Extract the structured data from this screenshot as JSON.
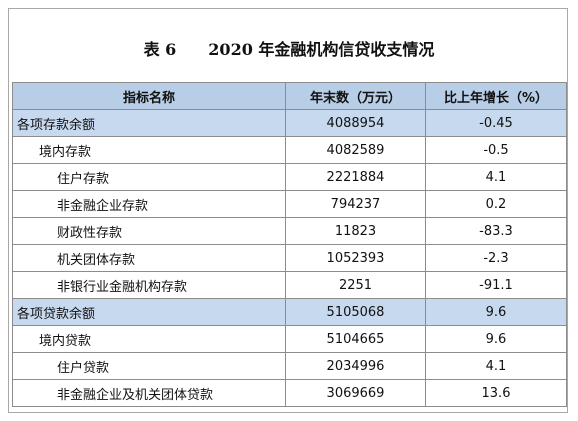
{
  "header": {
    "title": "表 6　　2020 年金融机构信贷收支情况"
  },
  "table": {
    "columns": [
      "指标名称",
      "年末数（万元）",
      "比上年增长（%）"
    ],
    "rows": [
      [
        "各项存款余额",
        "4088954",
        "-0.45"
      ],
      [
        "境内存款",
        "4082589",
        "-0.5"
      ],
      [
        "住户存款",
        "2221884",
        "4.1"
      ],
      [
        "非金融企业存款",
        "794237",
        "0.2"
      ],
      [
        "财政性存款",
        "11823",
        "-83.3"
      ],
      [
        "机关团体存款",
        "1052393",
        "-2.3"
      ],
      [
        "非银行业金融机构存款",
        "2251",
        "-91.1"
      ],
      [
        "各项贷款余额",
        "5105068",
        "9.6"
      ],
      [
        "境内贷款",
        "5104665",
        "9.6"
      ],
      [
        "住户贷款",
        "2034996",
        "4.1"
      ],
      [
        "非金融企业及机关团体贷款",
        "3069669",
        "13.6"
      ]
    ]
  }
}
